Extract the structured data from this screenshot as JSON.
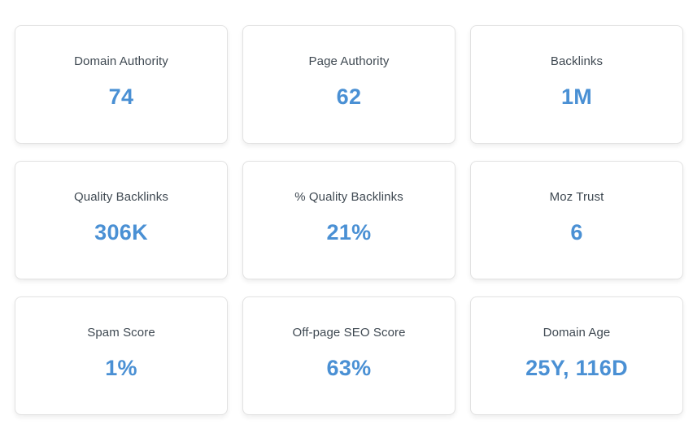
{
  "colors": {
    "accent": "#4a90d4",
    "label": "#3f4952",
    "card-border": "#e2e2e2",
    "card-bg": "#ffffff",
    "page-bg": "#ffffff"
  },
  "cards": [
    {
      "label": "Domain Authority",
      "value": "74"
    },
    {
      "label": "Page Authority",
      "value": "62"
    },
    {
      "label": "Backlinks",
      "value": "1M"
    },
    {
      "label": "Quality Backlinks",
      "value": "306K"
    },
    {
      "label": "% Quality Backlinks",
      "value": "21%"
    },
    {
      "label": "Moz Trust",
      "value": "6"
    },
    {
      "label": "Spam Score",
      "value": "1%"
    },
    {
      "label": "Off-page SEO Score",
      "value": "63%"
    },
    {
      "label": "Domain Age",
      "value": "25Y, 116D"
    }
  ]
}
